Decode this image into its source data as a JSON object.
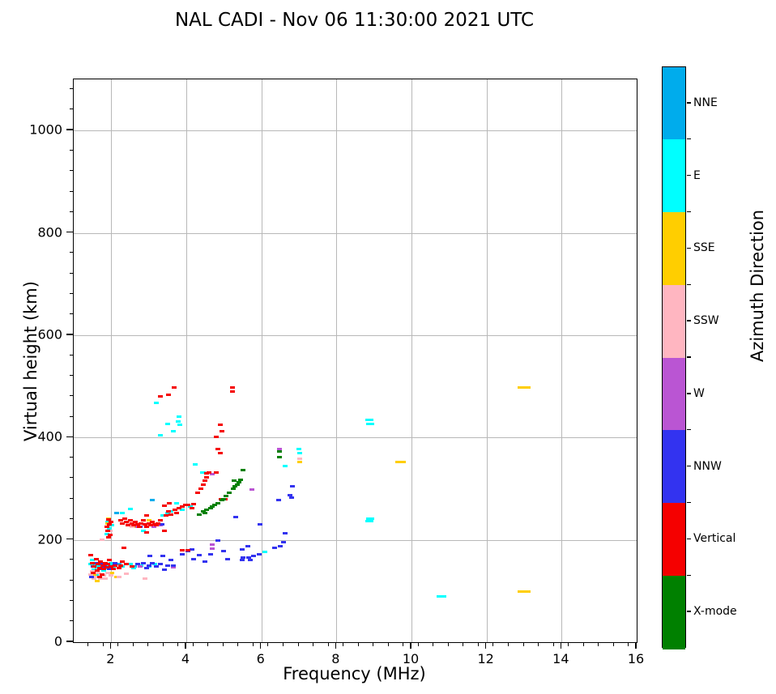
{
  "title": "NAL CADI - Nov 06 11:30:00 2021 UTC",
  "axes": {
    "xlabel": "Frequency (MHz)",
    "ylabel": "Virtual height (km)"
  },
  "colorbar": {
    "label": "Azimuth Direction",
    "categories": [
      {
        "label": "NNE",
        "color": "#00ACEC"
      },
      {
        "label": "E",
        "color": "#00FFFF"
      },
      {
        "label": "SSE",
        "color": "#FFCE00"
      },
      {
        "label": "SSW",
        "color": "#FFB6C1"
      },
      {
        "label": "W",
        "color": "#BA55D3"
      },
      {
        "label": "NNW",
        "color": "#3333F0"
      },
      {
        "label": "Vertical",
        "color": "#F50000"
      },
      {
        "label": "X-mode",
        "color": "#008000"
      }
    ]
  },
  "chart_data": {
    "type": "scatter",
    "title": "NAL CADI - Nov 06 11:30:00 2021 UTC",
    "xlabel": "Frequency (MHz)",
    "ylabel": "Virtual height (km)",
    "xlim": [
      1,
      16
    ],
    "ylim": [
      0,
      1100
    ],
    "xticks": [
      2,
      4,
      6,
      8,
      10,
      12,
      14,
      16
    ],
    "yticks": [
      0,
      200,
      400,
      600,
      800,
      1000
    ],
    "x_minor_step": 0.4,
    "y_minor_step": 40,
    "grid": true,
    "marker": "horizontal-dash",
    "series": [
      {
        "name": "NNE",
        "color": "#00ACEC",
        "points": [
          [
            1.55,
            152
          ],
          [
            1.62,
            146
          ],
          [
            1.7,
            148
          ],
          [
            1.78,
            143
          ],
          [
            1.9,
            148
          ],
          [
            2.0,
            150
          ],
          [
            2.2,
            152
          ],
          [
            2.62,
            148
          ],
          [
            2.15,
            252
          ],
          [
            3.1,
            277
          ]
        ]
      },
      {
        "name": "E",
        "color": "#00FFFF",
        "points": [
          [
            1.45,
            152
          ],
          [
            1.5,
            160
          ],
          [
            1.55,
            142
          ],
          [
            1.6,
            150
          ],
          [
            1.6,
            130
          ],
          [
            1.65,
            146
          ],
          [
            1.7,
            152
          ],
          [
            1.75,
            148
          ],
          [
            1.8,
            140
          ],
          [
            1.85,
            150
          ],
          [
            1.9,
            145
          ],
          [
            1.95,
            152
          ],
          [
            2.0,
            155
          ],
          [
            2.05,
            148
          ],
          [
            1.88,
            212
          ],
          [
            1.9,
            235
          ],
          [
            1.95,
            222
          ],
          [
            2.02,
            228
          ],
          [
            2.3,
            148
          ],
          [
            2.5,
            152
          ],
          [
            2.6,
            145
          ],
          [
            2.8,
            150
          ],
          [
            3.0,
            148
          ],
          [
            3.15,
            152
          ],
          [
            2.3,
            252
          ],
          [
            2.5,
            260
          ],
          [
            2.86,
            217
          ],
          [
            3.38,
            248
          ],
          [
            3.5,
            252
          ],
          [
            3.6,
            255
          ],
          [
            3.74,
            271
          ],
          [
            3.9,
            258
          ],
          [
            4.1,
            265
          ],
          [
            3.2,
            467
          ],
          [
            3.31,
            404
          ],
          [
            3.5,
            427
          ],
          [
            3.65,
            413
          ],
          [
            3.78,
            432
          ],
          [
            3.8,
            441
          ],
          [
            3.82,
            425
          ],
          [
            4.24,
            347
          ],
          [
            4.43,
            332
          ],
          [
            4.45,
            331
          ],
          [
            6.1,
            176
          ],
          [
            6.63,
            345
          ],
          [
            7.0,
            378
          ],
          [
            7.02,
            369
          ],
          [
            8.88,
            434,
            10
          ],
          [
            8.9,
            427,
            10
          ],
          [
            8.9,
            241,
            10
          ],
          [
            8.88,
            236,
            10
          ],
          [
            10.8,
            89,
            12
          ]
        ]
      },
      {
        "name": "SSE",
        "color": "#FFCE00",
        "points": [
          [
            1.55,
            132
          ],
          [
            1.62,
            120
          ],
          [
            1.8,
            152
          ],
          [
            2.02,
            135
          ],
          [
            2.15,
            127
          ],
          [
            1.9,
            232
          ],
          [
            1.93,
            242
          ],
          [
            2.64,
            226
          ],
          [
            2.7,
            231
          ],
          [
            3.0,
            238
          ],
          [
            7.02,
            352
          ],
          [
            9.7,
            352,
            13
          ],
          [
            13.0,
            99,
            16
          ],
          [
            13.0,
            497,
            16
          ]
        ]
      },
      {
        "name": "SSW",
        "color": "#FFB6C1",
        "points": [
          [
            1.45,
            132
          ],
          [
            1.5,
            138
          ],
          [
            1.55,
            125
          ],
          [
            1.6,
            128
          ],
          [
            1.65,
            135
          ],
          [
            1.72,
            125
          ],
          [
            1.75,
            200
          ],
          [
            1.8,
            130
          ],
          [
            1.85,
            125
          ],
          [
            1.9,
            135
          ],
          [
            2.0,
            131
          ],
          [
            2.2,
            128
          ],
          [
            2.4,
            133
          ],
          [
            2.9,
            125
          ],
          [
            1.97,
            218
          ],
          [
            2.42,
            235
          ],
          [
            2.45,
            231
          ],
          [
            2.5,
            228
          ],
          [
            2.55,
            225
          ],
          [
            2.6,
            231
          ],
          [
            7.02,
            358
          ]
        ]
      },
      {
        "name": "W",
        "color": "#BA55D3",
        "points": [
          [
            2.7,
            225
          ],
          [
            2.78,
            148
          ],
          [
            3.14,
            226
          ],
          [
            3.3,
            228
          ],
          [
            3.66,
            147
          ],
          [
            4.69,
            329
          ],
          [
            4.7,
            190
          ],
          [
            4.7,
            183
          ],
          [
            5.75,
            299
          ],
          [
            6.48,
            378
          ]
        ]
      },
      {
        "name": "NNW",
        "color": "#3333F0",
        "points": [
          [
            1.48,
            128
          ],
          [
            1.52,
            148
          ],
          [
            1.6,
            155
          ],
          [
            1.68,
            143
          ],
          [
            1.75,
            155
          ],
          [
            1.82,
            148
          ],
          [
            1.95,
            143
          ],
          [
            2.1,
            155
          ],
          [
            2.77,
            225
          ],
          [
            3.35,
            230
          ],
          [
            2.7,
            152
          ],
          [
            2.85,
            155
          ],
          [
            2.95,
            145
          ],
          [
            3.0,
            150
          ],
          [
            3.03,
            169
          ],
          [
            3.1,
            155
          ],
          [
            3.2,
            148
          ],
          [
            3.3,
            152
          ],
          [
            3.37,
            169
          ],
          [
            3.42,
            142
          ],
          [
            3.5,
            150
          ],
          [
            3.59,
            161
          ],
          [
            3.65,
            150
          ],
          [
            3.9,
            172
          ],
          [
            4.05,
            178
          ],
          [
            4.15,
            182
          ],
          [
            4.2,
            162
          ],
          [
            4.35,
            170
          ],
          [
            4.5,
            158
          ],
          [
            4.65,
            172
          ],
          [
            4.84,
            198
          ],
          [
            5.0,
            178
          ],
          [
            5.1,
            162
          ],
          [
            5.5,
            166
          ],
          [
            5.7,
            160
          ],
          [
            5.32,
            245
          ],
          [
            5.49,
            161
          ],
          [
            5.49,
            182
          ],
          [
            5.64,
            188
          ],
          [
            5.66,
            166
          ],
          [
            5.8,
            169
          ],
          [
            5.94,
            171
          ],
          [
            5.97,
            230
          ],
          [
            6.35,
            184
          ],
          [
            6.47,
            277
          ],
          [
            6.5,
            187
          ],
          [
            6.6,
            195
          ],
          [
            6.64,
            213
          ],
          [
            6.77,
            287
          ],
          [
            6.8,
            282
          ],
          [
            6.83,
            305
          ]
        ]
      },
      {
        "name": "Vertical",
        "color": "#F50000",
        "points": [
          [
            1.45,
            170
          ],
          [
            1.5,
            155
          ],
          [
            1.52,
            135
          ],
          [
            1.55,
            148
          ],
          [
            1.6,
            162
          ],
          [
            1.62,
            140
          ],
          [
            1.65,
            152
          ],
          [
            1.68,
            128
          ],
          [
            1.7,
            145
          ],
          [
            1.72,
            158
          ],
          [
            1.75,
            132
          ],
          [
            1.78,
            150
          ],
          [
            1.8,
            143
          ],
          [
            1.85,
            155
          ],
          [
            1.88,
            147
          ],
          [
            1.9,
            152
          ],
          [
            1.95,
            160
          ],
          [
            2.0,
            148
          ],
          [
            2.05,
            143
          ],
          [
            2.1,
            150
          ],
          [
            1.88,
            225
          ],
          [
            1.9,
            218
          ],
          [
            1.92,
            240
          ],
          [
            1.93,
            205
          ],
          [
            1.95,
            230
          ],
          [
            1.97,
            210
          ],
          [
            2.0,
            235
          ],
          [
            2.2,
            145
          ],
          [
            2.25,
            150
          ],
          [
            2.3,
            158
          ],
          [
            2.34,
            185
          ],
          [
            2.4,
            152
          ],
          [
            2.55,
            148
          ],
          [
            2.25,
            238
          ],
          [
            2.3,
            232
          ],
          [
            2.35,
            242
          ],
          [
            2.4,
            235
          ],
          [
            2.45,
            228
          ],
          [
            2.5,
            238
          ],
          [
            2.55,
            232
          ],
          [
            2.6,
            228
          ],
          [
            2.65,
            235
          ],
          [
            2.7,
            230
          ],
          [
            2.75,
            225
          ],
          [
            2.8,
            232
          ],
          [
            2.85,
            238
          ],
          [
            2.9,
            230
          ],
          [
            2.95,
            225
          ],
          [
            2.95,
            247
          ],
          [
            3.0,
            232
          ],
          [
            3.05,
            228
          ],
          [
            3.1,
            235
          ],
          [
            3.15,
            230
          ],
          [
            3.2,
            228
          ],
          [
            3.25,
            232
          ],
          [
            3.3,
            238
          ],
          [
            2.94,
            214
          ],
          [
            3.42,
            217
          ],
          [
            3.42,
            267
          ],
          [
            3.45,
            248
          ],
          [
            3.53,
            255
          ],
          [
            3.55,
            271
          ],
          [
            3.6,
            250
          ],
          [
            3.7,
            258
          ],
          [
            3.75,
            252
          ],
          [
            3.8,
            262
          ],
          [
            3.9,
            265
          ],
          [
            3.98,
            269
          ],
          [
            4.05,
            268
          ],
          [
            4.15,
            262
          ],
          [
            4.2,
            270
          ],
          [
            3.9,
            180
          ],
          [
            4.05,
            180
          ],
          [
            4.3,
            292
          ],
          [
            4.38,
            300
          ],
          [
            4.45,
            308
          ],
          [
            4.5,
            315
          ],
          [
            4.55,
            322
          ],
          [
            4.55,
            330
          ],
          [
            4.6,
            332
          ],
          [
            4.8,
            332
          ],
          [
            4.93,
            280
          ],
          [
            5.03,
            280
          ],
          [
            4.8,
            402
          ],
          [
            4.84,
            377
          ],
          [
            4.9,
            370
          ],
          [
            4.9,
            425
          ],
          [
            4.95,
            413
          ],
          [
            3.31,
            480
          ],
          [
            3.52,
            484
          ],
          [
            3.68,
            497
          ],
          [
            5.22,
            490
          ],
          [
            5.22,
            497
          ]
        ]
      },
      {
        "name": "X-mode",
        "color": "#008000",
        "points": [
          [
            4.35,
            250
          ],
          [
            4.45,
            255
          ],
          [
            4.5,
            252
          ],
          [
            4.55,
            258
          ],
          [
            4.65,
            262
          ],
          [
            4.7,
            265
          ],
          [
            4.75,
            268
          ],
          [
            4.85,
            272
          ],
          [
            4.95,
            278
          ],
          [
            5.0,
            280
          ],
          [
            5.05,
            285
          ],
          [
            5.15,
            292
          ],
          [
            5.25,
            300
          ],
          [
            5.27,
            315
          ],
          [
            5.3,
            305
          ],
          [
            5.35,
            308
          ],
          [
            5.4,
            313
          ],
          [
            5.45,
            318
          ],
          [
            5.51,
            336
          ],
          [
            6.48,
            361
          ],
          [
            6.48,
            372
          ]
        ]
      }
    ]
  }
}
